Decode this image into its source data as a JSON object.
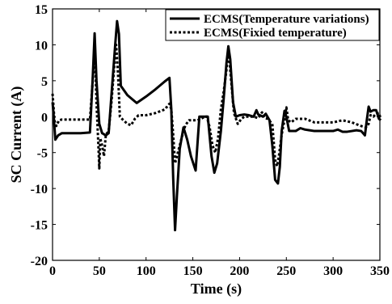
{
  "chart_data": {
    "type": "line",
    "xlabel": "Time (s)",
    "ylabel": "SC Current (A)",
    "xlim": [
      0,
      350
    ],
    "ylim": [
      -20,
      15
    ],
    "xticks": [
      "0",
      "50",
      "100",
      "150",
      "200",
      "250",
      "300",
      "350"
    ],
    "yticks": [
      "15",
      "10",
      "5",
      "0",
      "-5",
      "-10",
      "-15",
      "-20"
    ],
    "grid": false,
    "legend_position": "top-right",
    "series": [
      {
        "name": "ECMS(Temperature variations)",
        "style": "solid",
        "color": "#000000",
        "points": [
          [
            0,
            2.0
          ],
          [
            1,
            0.5
          ],
          [
            3,
            -3.2
          ],
          [
            6,
            -2.6
          ],
          [
            10,
            -2.3
          ],
          [
            20,
            -2.3
          ],
          [
            30,
            -2.3
          ],
          [
            40,
            -2.2
          ],
          [
            43,
            5.5
          ],
          [
            45,
            11.6
          ],
          [
            47,
            5.0
          ],
          [
            50,
            -1.0
          ],
          [
            53,
            -2.3
          ],
          [
            57,
            -2.6
          ],
          [
            60,
            -2.3
          ],
          [
            63,
            3.0
          ],
          [
            67,
            10.0
          ],
          [
            69,
            13.3
          ],
          [
            71,
            11.5
          ],
          [
            73,
            4.3
          ],
          [
            80,
            3.0
          ],
          [
            90,
            1.9
          ],
          [
            100,
            2.8
          ],
          [
            110,
            3.8
          ],
          [
            120,
            4.9
          ],
          [
            125,
            5.4
          ],
          [
            127,
            1.0
          ],
          [
            129,
            -8.5
          ],
          [
            131,
            -15.8
          ],
          [
            133,
            -11.0
          ],
          [
            136,
            -4.5
          ],
          [
            140,
            -1.5
          ],
          [
            144,
            -3.2
          ],
          [
            148,
            -5.5
          ],
          [
            153,
            -7.5
          ],
          [
            157,
            0.0
          ],
          [
            162,
            0.0
          ],
          [
            166,
            0.0
          ],
          [
            170,
            -5.5
          ],
          [
            173,
            -7.8
          ],
          [
            176,
            -6.5
          ],
          [
            180,
            -2.0
          ],
          [
            183,
            2.5
          ],
          [
            186,
            7.5
          ],
          [
            188,
            9.8
          ],
          [
            190,
            8.0
          ],
          [
            193,
            2.0
          ],
          [
            196,
            0.0
          ],
          [
            200,
            0.2
          ],
          [
            205,
            0.3
          ],
          [
            210,
            0.2
          ],
          [
            215,
            0.0
          ],
          [
            218,
            0.9
          ],
          [
            220,
            0.3
          ],
          [
            225,
            0.0
          ],
          [
            228,
            0.4
          ],
          [
            232,
            -0.5
          ],
          [
            235,
            -4.0
          ],
          [
            238,
            -8.8
          ],
          [
            241,
            -9.3
          ],
          [
            243,
            -7.0
          ],
          [
            245,
            -2.0
          ],
          [
            248,
            0.8
          ],
          [
            250,
            0.0
          ],
          [
            253,
            -2.0
          ],
          [
            260,
            -2.0
          ],
          [
            265,
            -1.6
          ],
          [
            270,
            -1.8
          ],
          [
            280,
            -2.0
          ],
          [
            290,
            -2.0
          ],
          [
            300,
            -2.0
          ],
          [
            305,
            -1.8
          ],
          [
            310,
            -2.1
          ],
          [
            315,
            -2.1
          ],
          [
            320,
            -2.0
          ],
          [
            325,
            -1.9
          ],
          [
            330,
            -2.0
          ],
          [
            334,
            -2.6
          ],
          [
            336,
            -0.5
          ],
          [
            338,
            1.4
          ],
          [
            340,
            0.7
          ],
          [
            343,
            0.9
          ],
          [
            346,
            0.9
          ],
          [
            349,
            -0.3
          ],
          [
            351,
            -0.5
          ]
        ]
      },
      {
        "name": "ECMS(Fixied temperature)",
        "style": "dotted",
        "color": "#000000",
        "points": [
          [
            0,
            3.2
          ],
          [
            1,
            1.5
          ],
          [
            2,
            -0.5
          ],
          [
            4,
            -1.3
          ],
          [
            7,
            -0.5
          ],
          [
            10,
            -0.4
          ],
          [
            20,
            -0.4
          ],
          [
            30,
            -0.4
          ],
          [
            40,
            -0.4
          ],
          [
            43,
            5.0
          ],
          [
            45,
            10.5
          ],
          [
            47,
            2.0
          ],
          [
            49,
            -4.0
          ],
          [
            50,
            -7.2
          ],
          [
            51,
            -3.0
          ],
          [
            53,
            -4.0
          ],
          [
            55,
            -5.5
          ],
          [
            57,
            -2.5
          ],
          [
            60,
            -2.0
          ],
          [
            63,
            2.0
          ],
          [
            66,
            7.0
          ],
          [
            68,
            10.0
          ],
          [
            70,
            6.0
          ],
          [
            72,
            0.0
          ],
          [
            75,
            -0.4
          ],
          [
            80,
            -1.0
          ],
          [
            84,
            -1.2
          ],
          [
            88,
            -0.3
          ],
          [
            92,
            0.2
          ],
          [
            100,
            0.2
          ],
          [
            110,
            0.5
          ],
          [
            120,
            1.0
          ],
          [
            125,
            1.8
          ],
          [
            127,
            1.0
          ],
          [
            129,
            -2.5
          ],
          [
            131,
            -6.5
          ],
          [
            133,
            -5.5
          ],
          [
            136,
            -4.0
          ],
          [
            139,
            -2.5
          ],
          [
            142,
            -1.2
          ],
          [
            146,
            -0.5
          ],
          [
            150,
            -0.5
          ],
          [
            155,
            -0.5
          ],
          [
            160,
            -0.2
          ],
          [
            163,
            0.0
          ],
          [
            165,
            0.0
          ],
          [
            168,
            -1.5
          ],
          [
            171,
            -4.0
          ],
          [
            174,
            -5.0
          ],
          [
            177,
            -3.0
          ],
          [
            180,
            1.0
          ],
          [
            183,
            3.5
          ],
          [
            186,
            6.5
          ],
          [
            188,
            9.5
          ],
          [
            191,
            5.0
          ],
          [
            194,
            0.5
          ],
          [
            198,
            -1.0
          ],
          [
            202,
            -0.3
          ],
          [
            205,
            0.0
          ],
          [
            210,
            0.0
          ],
          [
            215,
            0.0
          ],
          [
            220,
            -0.2
          ],
          [
            224,
            0.6
          ],
          [
            227,
            -0.2
          ],
          [
            230,
            -0.3
          ],
          [
            235,
            -1.0
          ],
          [
            238,
            -6.0
          ],
          [
            240,
            -6.9
          ],
          [
            242,
            -5.5
          ],
          [
            245,
            -2.5
          ],
          [
            248,
            -0.5
          ],
          [
            250,
            1.3
          ],
          [
            252,
            -0.5
          ],
          [
            255,
            -0.8
          ],
          [
            260,
            -0.3
          ],
          [
            265,
            -0.3
          ],
          [
            270,
            -0.3
          ],
          [
            280,
            -0.8
          ],
          [
            290,
            -0.8
          ],
          [
            300,
            -0.8
          ],
          [
            310,
            -0.5
          ],
          [
            320,
            -0.8
          ],
          [
            330,
            -1.3
          ],
          [
            335,
            -1.5
          ],
          [
            338,
            -1.0
          ],
          [
            340,
            0.2
          ],
          [
            343,
            0.0
          ],
          [
            346,
            0.4
          ],
          [
            349,
            0.5
          ],
          [
            351,
            -0.3
          ]
        ]
      }
    ]
  }
}
